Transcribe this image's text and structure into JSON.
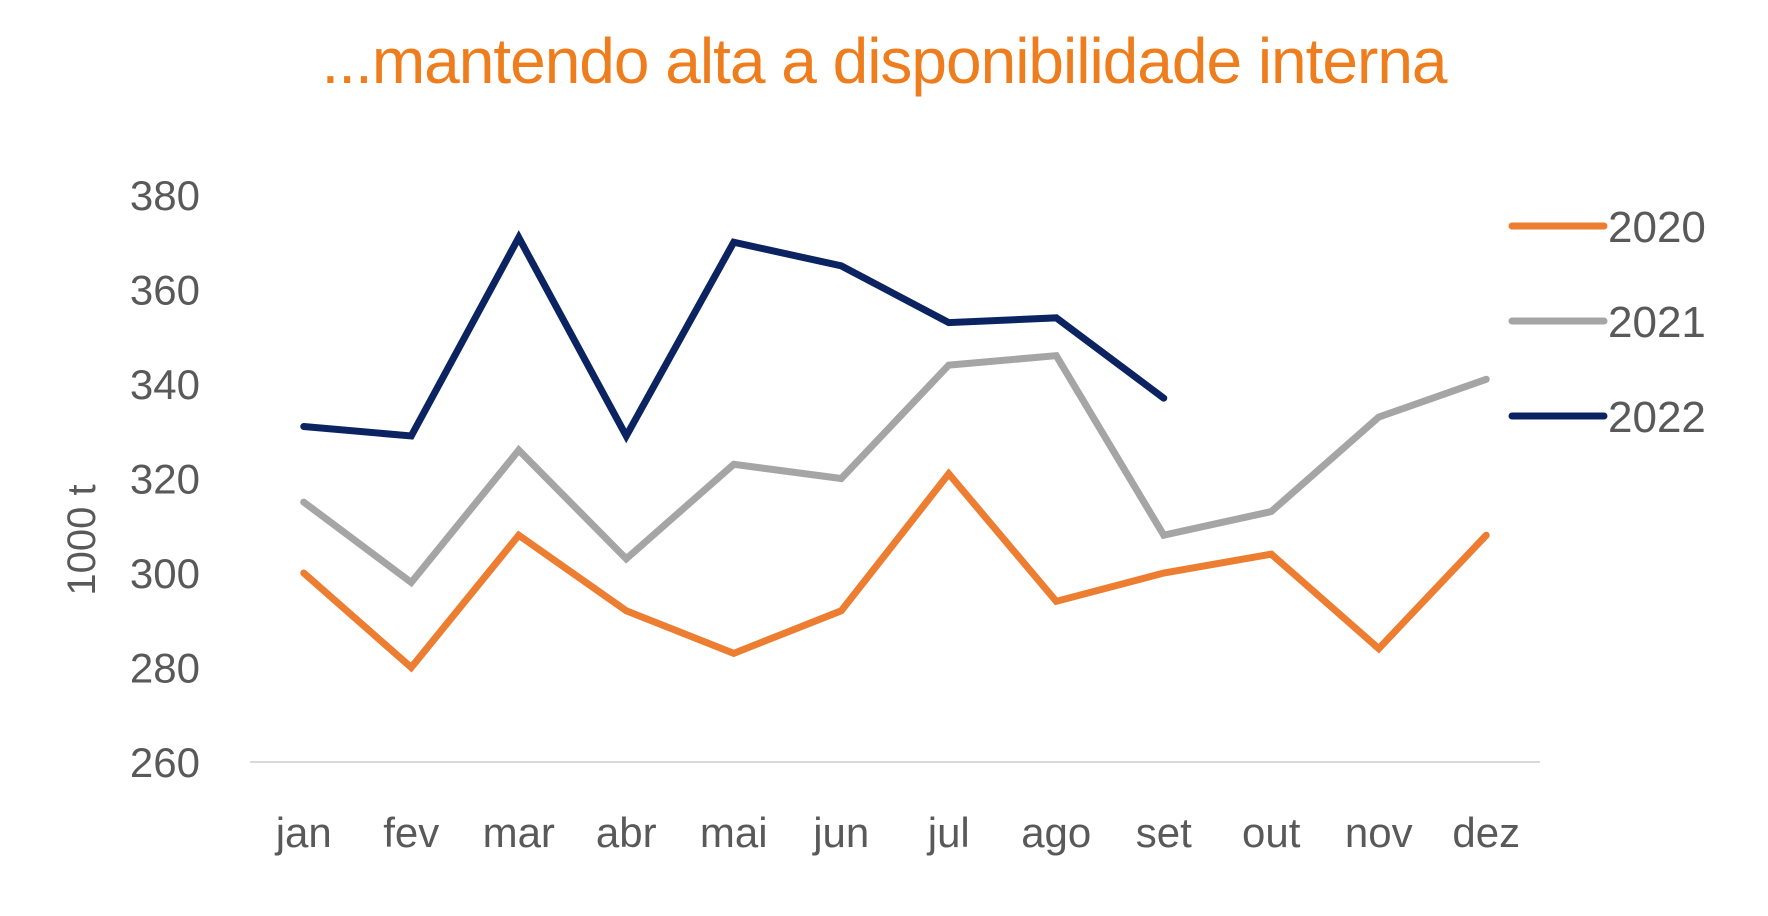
{
  "chart_data": {
    "type": "line",
    "title": "...mantendo alta a disponibilidade interna",
    "xlabel": "",
    "ylabel": "1000 t",
    "ylim": [
      260,
      380
    ],
    "yticks": [
      260,
      280,
      300,
      320,
      340,
      360,
      380
    ],
    "categories": [
      "jan",
      "fev",
      "mar",
      "abr",
      "mai",
      "jun",
      "jul",
      "ago",
      "set",
      "out",
      "nov",
      "dez"
    ],
    "grid": false,
    "legend_position": "right",
    "series": [
      {
        "name": "2020",
        "color": "#ed7d31",
        "values": [
          300,
          280,
          308,
          292,
          283,
          292,
          321,
          294,
          300,
          304,
          284,
          308
        ]
      },
      {
        "name": "2021",
        "color": "#a5a5a5",
        "values": [
          315,
          298,
          326,
          303,
          323,
          320,
          344,
          346,
          308,
          313,
          333,
          341
        ]
      },
      {
        "name": "2022",
        "color": "#0b2461",
        "values": [
          331,
          329,
          371,
          329,
          370,
          365,
          353,
          354,
          337,
          null,
          null,
          null
        ]
      }
    ]
  }
}
